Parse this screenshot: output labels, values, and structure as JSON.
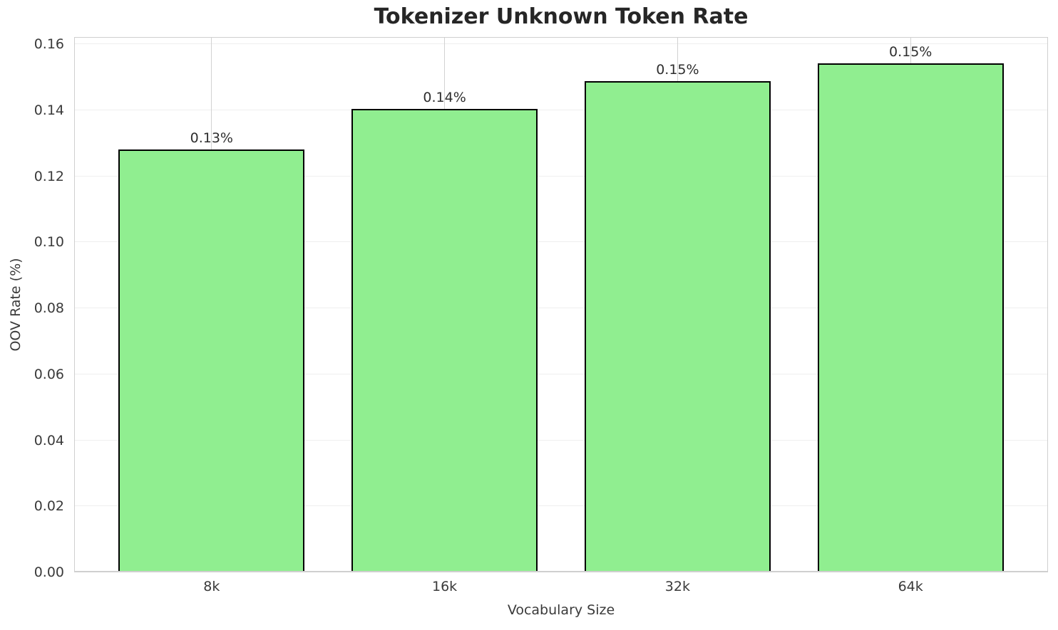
{
  "chart_data": {
    "type": "bar",
    "title": "Tokenizer Unknown Token Rate",
    "xlabel": "Vocabulary Size",
    "ylabel": "OOV Rate (%)",
    "categories": [
      "8k",
      "16k",
      "32k",
      "64k"
    ],
    "values": [
      0.1282,
      0.1404,
      0.1488,
      0.1542
    ],
    "bar_labels": [
      "0.13%",
      "0.14%",
      "0.15%",
      "0.15%"
    ],
    "yticks": [
      0.0,
      0.02,
      0.04,
      0.06,
      0.08,
      0.1,
      0.12,
      0.14,
      0.16
    ],
    "ytick_labels": [
      "0.00",
      "0.02",
      "0.04",
      "0.06",
      "0.08",
      "0.10",
      "0.12",
      "0.14",
      "0.16"
    ],
    "ylim": [
      0,
      0.1622
    ],
    "grid": true,
    "legend_position": "none",
    "colors": {
      "background": "#ffffff",
      "bar_fill": "#90EE90",
      "bar_edge": "#000000",
      "grid_horizontal": "#efefef",
      "grid_vertical": "#d2d2d2",
      "spine": "#cfcfcf",
      "title_text": "#262626",
      "tick_text": "#3a3a3a"
    }
  }
}
